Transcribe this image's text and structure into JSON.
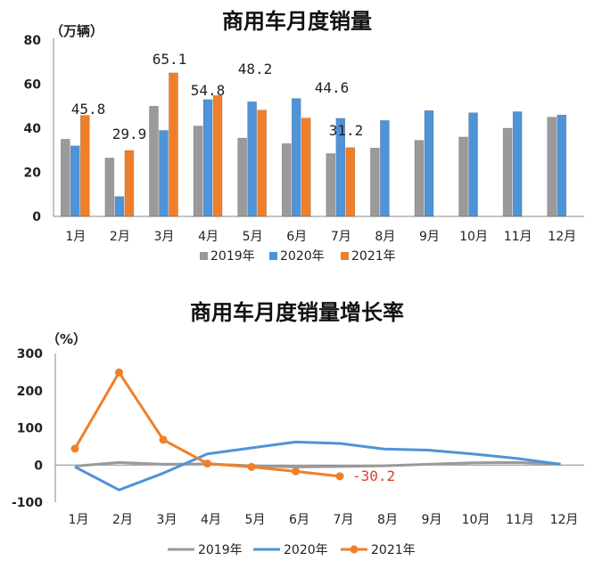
{
  "colors": {
    "y2019": "#9a9a9a",
    "y2020": "#4f93d8",
    "y2021": "#f07f2a",
    "neg_label": "#e23a2a"
  },
  "months": [
    "1月",
    "2月",
    "3月",
    "4月",
    "5月",
    "6月",
    "7月",
    "8月",
    "9月",
    "10月",
    "11月",
    "12月"
  ],
  "series_names": [
    "2019年",
    "2020年",
    "2021年"
  ],
  "chart_data": [
    {
      "type": "bar",
      "title": "商用车月度销量",
      "unit": "（万辆）",
      "ylim": [
        0,
        80
      ],
      "yticks": [
        0,
        20,
        40,
        60,
        80
      ],
      "legend": "bottom",
      "series": [
        {
          "name": "2019年",
          "values": [
            35,
            26.5,
            50,
            41,
            35.5,
            33,
            28.5,
            31,
            34.5,
            36,
            40,
            45
          ]
        },
        {
          "name": "2020年",
          "values": [
            32,
            9,
            39,
            53,
            52,
            53.5,
            44.5,
            43.5,
            48,
            47,
            47.5,
            46
          ]
        },
        {
          "name": "2021年",
          "values": [
            45.8,
            29.9,
            65.1,
            54.8,
            48.2,
            44.6,
            31.2,
            null,
            null,
            null,
            null,
            null
          ]
        }
      ],
      "data_labels": [
        {
          "month": 0,
          "text": "45.8"
        },
        {
          "month": 1,
          "text": "29.9"
        },
        {
          "month": 2,
          "text": "65.1"
        },
        {
          "month": 3,
          "text": "54.8"
        },
        {
          "month": 4,
          "text": "48.2"
        },
        {
          "month": 5,
          "text": "44.6"
        },
        {
          "month": 6,
          "text": "31.2"
        }
      ]
    },
    {
      "type": "line",
      "title": "商用车月度销量增长率",
      "unit": "（%）",
      "ylim": [
        -100,
        300
      ],
      "yticks": [
        -100,
        0,
        100,
        200,
        300
      ],
      "legend": "bottom",
      "series": [
        {
          "name": "2019年",
          "values": [
            -3,
            7,
            2,
            3,
            -2,
            -5,
            -4,
            -2,
            2,
            6,
            7,
            3
          ]
        },
        {
          "name": "2020年",
          "values": [
            -5,
            -67,
            -22,
            30,
            46,
            62,
            58,
            43,
            40,
            30,
            18,
            2
          ]
        },
        {
          "name": "2021年",
          "values": [
            44,
            249,
            68,
            4,
            -5,
            -17,
            -30.2,
            null,
            null,
            null,
            null,
            null
          ]
        }
      ],
      "end_label": "-30.2"
    }
  ]
}
